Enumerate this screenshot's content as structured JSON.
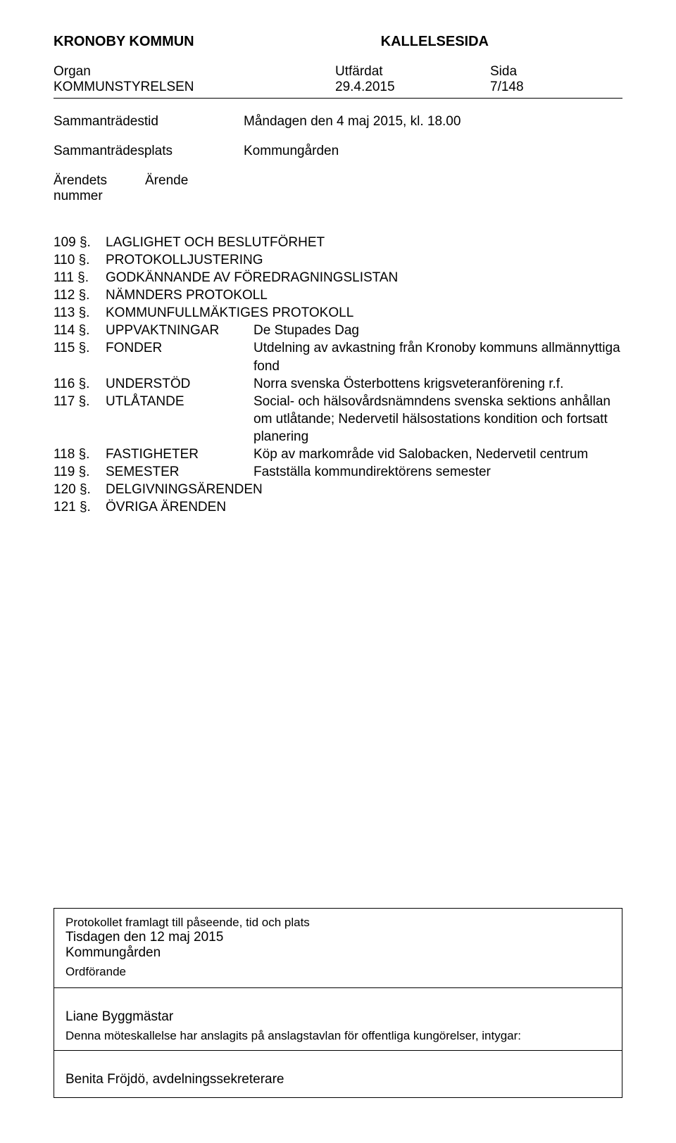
{
  "header": {
    "org_bold": "KRONOBY KOMMUN",
    "doc_type": "KALLELSESIDA",
    "organ_label": "Organ",
    "utf_label": "Utfärdat",
    "sida_label": "Sida",
    "organ_value": "KOMMUNSTYRELSEN",
    "date_value": "29.4.2015",
    "page_value": "7/148"
  },
  "meta": {
    "tid_label": "Sammanträdestid",
    "tid_value": "Måndagen den 4 maj 2015, kl. 18.00",
    "plats_label": "Sammanträdesplats",
    "plats_value": "Kommungården",
    "arendets_label": "Ärendets",
    "arende_label": "Ärende",
    "nummer_label": "nummer"
  },
  "items": [
    {
      "num": "109 §.",
      "topic": "",
      "desc": "LAGLIGHET OCH BESLUTFÖRHET"
    },
    {
      "num": "110 §.",
      "topic": "",
      "desc": "PROTOKOLLJUSTERING"
    },
    {
      "num": "111 §.",
      "topic": "",
      "desc": "GODKÄNNANDE AV FÖREDRAGNINGSLISTAN"
    },
    {
      "num": "112 §.",
      "topic": "",
      "desc": "NÄMNDERS PROTOKOLL"
    },
    {
      "num": "113 §.",
      "topic": "",
      "desc": "KOMMUNFULLMÄKTIGES PROTOKOLL"
    },
    {
      "num": "114 §.",
      "topic": "UPPVAKTNINGAR",
      "desc": "De Stupades Dag"
    },
    {
      "num": "115 §.",
      "topic": "FONDER",
      "desc": "Utdelning av avkastning från Kronoby kommuns allmännyttiga fond"
    },
    {
      "num": "116 §.",
      "topic": "UNDERSTÖD",
      "desc": "Norra svenska Österbottens krigsveteranförening r.f."
    },
    {
      "num": "117 §.",
      "topic": "UTLÅTANDE",
      "desc": "Social- och hälsovårdsnämndens svenska sektions anhållan om utlåtande; Nedervetil hälsostations kondition och fortsatt planering"
    },
    {
      "num": "118 §.",
      "topic": "FASTIGHETER",
      "desc": "Köp av markområde vid Salobacken, Nedervetil centrum"
    },
    {
      "num": "119 §.",
      "topic": "SEMESTER",
      "desc": "Fastställa kommundirektörens semester"
    },
    {
      "num": "120 §.",
      "topic": "",
      "desc": "DELGIVNINGSÄRENDEN"
    },
    {
      "num": "121 §.",
      "topic": "",
      "desc": "ÖVRIGA ÄRENDEN"
    }
  ],
  "footer": {
    "line1": "Protokollet framlagt till påseende, tid och plats",
    "line2": "Tisdagen den 12 maj 2015",
    "line3": "Kommungården",
    "line4": "Ordförande",
    "name": "Liane Byggmästar",
    "desc": "Denna möteskallelse har anslagits på anslagstavlan för offentliga kungörelser, intygar:",
    "signer": "Benita Fröjdö, avdelningssekreterare"
  }
}
